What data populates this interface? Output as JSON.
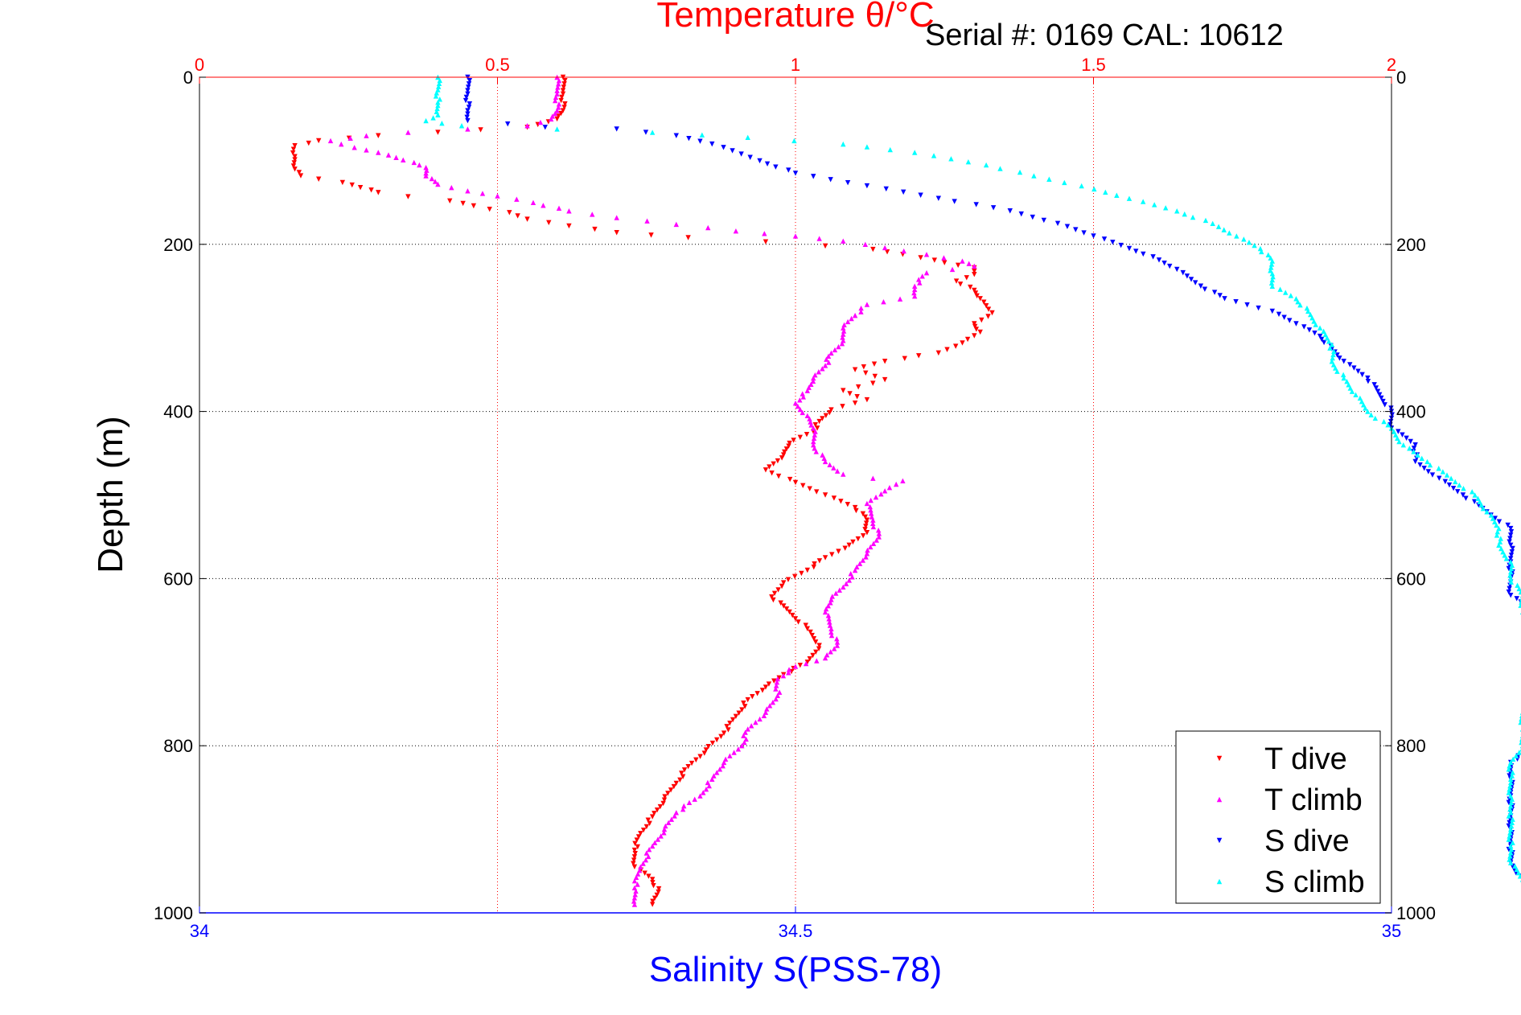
{
  "chart_data": {
    "type": "scatter",
    "title": "Temperature θ/°C",
    "annotation": "Serial #: 0169 CAL: 10612",
    "xlabel_bottom": "Salinity S(PSS-78)",
    "ylabel": "Depth (m)",
    "x_top": {
      "label": "Temperature θ/°C",
      "range": [
        0,
        2
      ],
      "ticks": [
        0,
        0.5,
        1,
        1.5,
        2
      ],
      "tick_labels": [
        "0",
        "0.5",
        "1",
        "1.5",
        "2"
      ],
      "color": "#ff0000"
    },
    "x_bottom": {
      "label": "Salinity S(PSS-78)",
      "range": [
        34,
        35
      ],
      "ticks": [
        34,
        34.5,
        35
      ],
      "tick_labels": [
        "34",
        "34.5",
        "35"
      ],
      "color": "#0000ff"
    },
    "y": {
      "range": [
        0,
        1000
      ],
      "reversed": true,
      "ticks": [
        0,
        200,
        400,
        600,
        800,
        1000
      ],
      "tick_labels": [
        "0",
        "200",
        "400",
        "600",
        "800",
        "1000"
      ]
    },
    "grid": true,
    "legend": {
      "position": "bottom-right",
      "entries": [
        "T dive",
        "T climb",
        "S dive",
        "S climb"
      ]
    },
    "series": [
      {
        "name": "T dive",
        "axis": "temperature",
        "color": "#ff0000",
        "marker": "triangle-down",
        "points": [
          [
            0.61,
            0
          ],
          [
            0.61,
            20
          ],
          [
            0.61,
            40
          ],
          [
            0.6,
            50
          ],
          [
            0.55,
            60
          ],
          [
            0.4,
            66
          ],
          [
            0.3,
            70
          ],
          [
            0.2,
            76
          ],
          [
            0.16,
            82
          ],
          [
            0.16,
            95
          ],
          [
            0.16,
            110
          ],
          [
            0.17,
            118
          ],
          [
            0.2,
            122
          ],
          [
            0.24,
            126
          ],
          [
            0.27,
            132
          ],
          [
            0.3,
            138
          ],
          [
            0.35,
            143
          ],
          [
            0.42,
            148
          ],
          [
            0.46,
            154
          ],
          [
            0.52,
            162
          ],
          [
            0.55,
            170
          ],
          [
            0.62,
            178
          ],
          [
            0.7,
            186
          ],
          [
            0.82,
            192
          ],
          [
            0.95,
            197
          ],
          [
            1.05,
            202
          ],
          [
            1.13,
            206
          ],
          [
            1.18,
            212
          ],
          [
            1.21,
            216
          ],
          [
            1.25,
            222
          ],
          [
            1.3,
            228
          ],
          [
            1.3,
            236
          ],
          [
            1.27,
            244
          ],
          [
            1.3,
            255
          ],
          [
            1.31,
            265
          ],
          [
            1.33,
            282
          ],
          [
            1.3,
            295
          ],
          [
            1.31,
            305
          ],
          [
            1.28,
            318
          ],
          [
            1.24,
            330
          ],
          [
            1.15,
            340
          ],
          [
            1.1,
            350
          ],
          [
            1.15,
            362
          ],
          [
            1.08,
            375
          ],
          [
            1.12,
            386
          ],
          [
            1.06,
            398
          ],
          [
            1.04,
            412
          ],
          [
            1.03,
            424
          ],
          [
            0.99,
            438
          ],
          [
            0.98,
            452
          ],
          [
            0.95,
            470
          ],
          [
            1.0,
            485
          ],
          [
            1.05,
            500
          ],
          [
            1.1,
            515
          ],
          [
            1.12,
            530
          ],
          [
            1.12,
            545
          ],
          [
            1.09,
            560
          ],
          [
            1.05,
            575
          ],
          [
            1.02,
            590
          ],
          [
            0.98,
            605
          ],
          [
            0.96,
            622
          ],
          [
            0.99,
            640
          ],
          [
            1.02,
            660
          ],
          [
            1.04,
            680
          ],
          [
            1.02,
            700
          ],
          [
            0.98,
            715
          ],
          [
            0.95,
            730
          ],
          [
            0.92,
            745
          ],
          [
            0.9,
            765
          ],
          [
            0.88,
            785
          ],
          [
            0.85,
            805
          ],
          [
            0.82,
            825
          ],
          [
            0.8,
            845
          ],
          [
            0.78,
            865
          ],
          [
            0.76,
            885
          ],
          [
            0.74,
            905
          ],
          [
            0.73,
            925
          ],
          [
            0.73,
            945
          ],
          [
            0.76,
            960
          ],
          [
            0.77,
            975
          ],
          [
            0.76,
            990
          ]
        ]
      },
      {
        "name": "T climb",
        "axis": "temperature",
        "color": "#ff00ff",
        "marker": "triangle-up",
        "points": [
          [
            0.6,
            0
          ],
          [
            0.6,
            20
          ],
          [
            0.6,
            40
          ],
          [
            0.59,
            50
          ],
          [
            0.55,
            58
          ],
          [
            0.45,
            62
          ],
          [
            0.35,
            66
          ],
          [
            0.28,
            70
          ],
          [
            0.22,
            76
          ],
          [
            0.26,
            84
          ],
          [
            0.3,
            90
          ],
          [
            0.33,
            96
          ],
          [
            0.36,
            102
          ],
          [
            0.38,
            108
          ],
          [
            0.38,
            118
          ],
          [
            0.4,
            128
          ],
          [
            0.45,
            136
          ],
          [
            0.5,
            142
          ],
          [
            0.56,
            150
          ],
          [
            0.62,
            160
          ],
          [
            0.7,
            168
          ],
          [
            0.8,
            176
          ],
          [
            0.9,
            184
          ],
          [
            1.0,
            190
          ],
          [
            1.08,
            196
          ],
          [
            1.15,
            204
          ],
          [
            1.22,
            212
          ],
          [
            1.28,
            220
          ],
          [
            1.3,
            226
          ],
          [
            1.22,
            234
          ],
          [
            1.2,
            250
          ],
          [
            1.2,
            262
          ],
          [
            1.12,
            272
          ],
          [
            1.1,
            285
          ],
          [
            1.08,
            300
          ],
          [
            1.08,
            315
          ],
          [
            1.06,
            330
          ],
          [
            1.05,
            345
          ],
          [
            1.03,
            360
          ],
          [
            1.02,
            375
          ],
          [
            1.0,
            390
          ],
          [
            1.02,
            405
          ],
          [
            1.03,
            420
          ],
          [
            1.03,
            440
          ],
          [
            1.05,
            460
          ],
          [
            1.08,
            475
          ],
          [
            1.13,
            480
          ],
          [
            1.18,
            483
          ],
          [
            1.15,
            495
          ],
          [
            1.12,
            510
          ],
          [
            1.13,
            530
          ],
          [
            1.14,
            550
          ],
          [
            1.12,
            570
          ],
          [
            1.1,
            590
          ],
          [
            1.08,
            610
          ],
          [
            1.06,
            625
          ],
          [
            1.05,
            640
          ],
          [
            1.06,
            660
          ],
          [
            1.07,
            680
          ],
          [
            1.05,
            695
          ],
          [
            1.0,
            705
          ],
          [
            0.97,
            720
          ],
          [
            0.97,
            740
          ],
          [
            0.95,
            760
          ],
          [
            0.92,
            780
          ],
          [
            0.91,
            800
          ],
          [
            0.88,
            820
          ],
          [
            0.86,
            840
          ],
          [
            0.84,
            860
          ],
          [
            0.8,
            880
          ],
          [
            0.78,
            900
          ],
          [
            0.76,
            920
          ],
          [
            0.74,
            945
          ],
          [
            0.73,
            970
          ],
          [
            0.73,
            990
          ]
        ]
      },
      {
        "name": "S dive",
        "axis": "salinity",
        "color": "#0000ff",
        "marker": "triangle-down",
        "points": [
          [
            34.225,
            0
          ],
          [
            34.225,
            20
          ],
          [
            34.225,
            40
          ],
          [
            34.225,
            52
          ],
          [
            34.29,
            60
          ],
          [
            34.35,
            62
          ],
          [
            34.4,
            70
          ],
          [
            34.43,
            80
          ],
          [
            34.47,
            100
          ],
          [
            34.5,
            115
          ],
          [
            34.56,
            130
          ],
          [
            34.62,
            145
          ],
          [
            34.68,
            160
          ],
          [
            34.72,
            175
          ],
          [
            34.75,
            190
          ],
          [
            34.78,
            205
          ],
          [
            34.8,
            215
          ],
          [
            34.82,
            230
          ],
          [
            34.84,
            250
          ],
          [
            34.86,
            265
          ],
          [
            34.9,
            280
          ],
          [
            34.92,
            295
          ],
          [
            34.94,
            310
          ],
          [
            34.95,
            325
          ],
          [
            34.96,
            340
          ],
          [
            34.98,
            360
          ],
          [
            34.99,
            380
          ],
          [
            35.0,
            400
          ],
          [
            35.0,
            420
          ],
          [
            35.02,
            440
          ],
          [
            35.02,
            460
          ],
          [
            35.04,
            480
          ],
          [
            35.06,
            500
          ],
          [
            35.08,
            520
          ],
          [
            35.1,
            540
          ],
          [
            35.1,
            560
          ],
          [
            35.1,
            580
          ],
          [
            35.1,
            600
          ],
          [
            35.1,
            620
          ],
          [
            35.12,
            640
          ],
          [
            35.13,
            660
          ],
          [
            35.14,
            680
          ],
          [
            35.14,
            700
          ],
          [
            35.13,
            720
          ],
          [
            35.12,
            740
          ],
          [
            35.12,
            760
          ],
          [
            35.12,
            780
          ],
          [
            35.12,
            800
          ],
          [
            35.1,
            820
          ],
          [
            35.1,
            840
          ],
          [
            35.1,
            860
          ],
          [
            35.1,
            880
          ],
          [
            35.1,
            900
          ],
          [
            35.1,
            920
          ],
          [
            35.1,
            940
          ],
          [
            35.11,
            960
          ],
          [
            35.12,
            980
          ],
          [
            35.13,
            995
          ]
        ]
      },
      {
        "name": "S climb",
        "axis": "salinity",
        "color": "#00ffff",
        "marker": "triangle-up",
        "points": [
          [
            34.2,
            0
          ],
          [
            34.2,
            15
          ],
          [
            34.2,
            30
          ],
          [
            34.2,
            45
          ],
          [
            34.19,
            52
          ],
          [
            34.22,
            58
          ],
          [
            34.3,
            62
          ],
          [
            34.38,
            66
          ],
          [
            34.46,
            72
          ],
          [
            34.54,
            80
          ],
          [
            34.6,
            90
          ],
          [
            34.66,
            105
          ],
          [
            34.7,
            118
          ],
          [
            34.74,
            130
          ],
          [
            34.78,
            145
          ],
          [
            34.82,
            160
          ],
          [
            34.85,
            175
          ],
          [
            34.87,
            190
          ],
          [
            34.89,
            205
          ],
          [
            34.9,
            220
          ],
          [
            34.9,
            235
          ],
          [
            34.9,
            250
          ],
          [
            34.92,
            265
          ],
          [
            34.93,
            280
          ],
          [
            34.94,
            300
          ],
          [
            34.95,
            320
          ],
          [
            34.95,
            340
          ],
          [
            34.96,
            360
          ],
          [
            34.97,
            380
          ],
          [
            34.98,
            400
          ],
          [
            35.0,
            420
          ],
          [
            35.01,
            440
          ],
          [
            35.03,
            460
          ],
          [
            35.05,
            480
          ],
          [
            35.07,
            500
          ],
          [
            35.08,
            520
          ],
          [
            35.09,
            540
          ],
          [
            35.09,
            560
          ],
          [
            35.1,
            580
          ],
          [
            35.1,
            600
          ],
          [
            35.11,
            620
          ],
          [
            35.11,
            640
          ],
          [
            35.12,
            660
          ],
          [
            35.12,
            680
          ],
          [
            35.12,
            700
          ],
          [
            35.12,
            720
          ],
          [
            35.12,
            740
          ],
          [
            35.11,
            760
          ],
          [
            35.11,
            780
          ],
          [
            35.11,
            800
          ],
          [
            35.1,
            820
          ],
          [
            35.1,
            840
          ],
          [
            35.1,
            860
          ],
          [
            35.1,
            880
          ],
          [
            35.1,
            900
          ],
          [
            35.1,
            920
          ],
          [
            35.1,
            940
          ],
          [
            35.11,
            960
          ],
          [
            35.12,
            980
          ],
          [
            35.13,
            995
          ]
        ]
      }
    ]
  }
}
